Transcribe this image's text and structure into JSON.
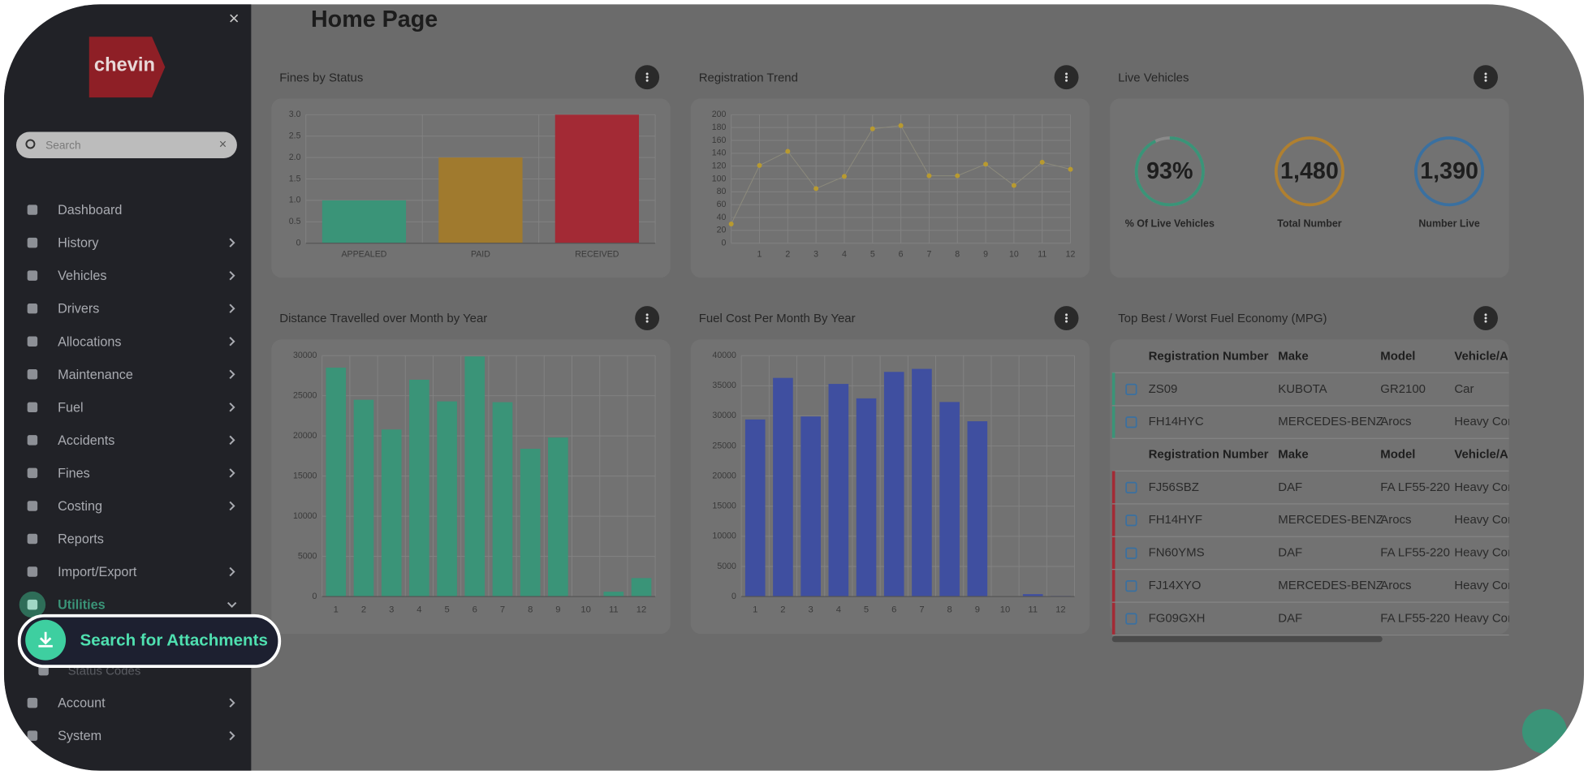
{
  "header": {
    "title": "Home Page"
  },
  "sidebar": {
    "logo": "chevin",
    "search_placeholder": "Search",
    "nav": [
      {
        "label": "Dashboard",
        "expandable": false
      },
      {
        "label": "History",
        "expandable": true
      },
      {
        "label": "Vehicles",
        "expandable": true
      },
      {
        "label": "Drivers",
        "expandable": true
      },
      {
        "label": "Allocations",
        "expandable": true
      },
      {
        "label": "Maintenance",
        "expandable": true
      },
      {
        "label": "Fuel",
        "expandable": true
      },
      {
        "label": "Accidents",
        "expandable": true
      },
      {
        "label": "Fines",
        "expandable": true
      },
      {
        "label": "Costing",
        "expandable": true
      },
      {
        "label": "Reports",
        "expandable": false
      },
      {
        "label": "Import/Export",
        "expandable": true
      },
      {
        "label": "Utilities",
        "expandable": true,
        "active": true
      },
      {
        "label": "Status Codes",
        "expandable": false,
        "sub": true
      },
      {
        "label": "Account",
        "expandable": true
      },
      {
        "label": "System",
        "expandable": true
      }
    ],
    "highlight": "Search for Attachments"
  },
  "chart_data": [
    {
      "type": "bar",
      "title": "Fines by Status",
      "categories": [
        "APPEALED",
        "PAID",
        "RECEIVED"
      ],
      "values": [
        1,
        2,
        3
      ],
      "colors": [
        "#3a9478",
        "#a07a2e",
        "#a32a35"
      ],
      "ylim": [
        0,
        3
      ],
      "yticks": [
        0,
        0.5,
        {
          "value": 1,
          "label": "1.0"
        },
        1.5,
        {
          "value": 2,
          "label": "2.0"
        },
        2.5,
        {
          "value": 3,
          "label": "3.0"
        }
      ],
      "grid": true
    },
    {
      "type": "line",
      "title": "Registration Trend",
      "x": [
        0,
        1,
        2,
        3,
        4,
        5,
        6,
        7,
        8,
        9,
        10,
        11,
        12
      ],
      "values": [
        30,
        121,
        143,
        85,
        104,
        178,
        183,
        105,
        105,
        123,
        90,
        126,
        115
      ],
      "color": "#b89a30",
      "xlim": [
        0,
        12
      ],
      "xticks": [
        1,
        2,
        3,
        4,
        5,
        6,
        7,
        8,
        9,
        10,
        11,
        12
      ],
      "ylim": [
        0,
        200
      ],
      "yticks": [
        0,
        20,
        40,
        60,
        80,
        100,
        120,
        140,
        160,
        180,
        200
      ],
      "grid": true
    },
    {
      "type": "gauge",
      "title": "Live Vehicles",
      "values": [
        93,
        1480,
        1390
      ],
      "value_labels": [
        "93%",
        "1,480",
        "1,390"
      ],
      "labels": [
        "% Of Live Vehicles",
        "Total Number",
        "Number Live"
      ],
      "colors": [
        "#3a9478",
        "#b08030",
        "#3a70a0"
      ],
      "arc": [
        true,
        false,
        false
      ]
    },
    {
      "type": "bar",
      "title": "Distance Travelled over Month by Year",
      "categories": [
        "1",
        "2",
        "3",
        "4",
        "5",
        "6",
        "7",
        "8",
        "9",
        "10",
        "11",
        "12"
      ],
      "values": [
        28500,
        24500,
        20800,
        27000,
        24300,
        29900,
        24200,
        18400,
        19800,
        0,
        600,
        2300
      ],
      "color": "#3a9478",
      "ylim": [
        0,
        30000
      ],
      "yticks": [
        0,
        5000,
        10000,
        15000,
        20000,
        25000,
        30000
      ],
      "grid": true
    },
    {
      "type": "bar",
      "title": "Fuel Cost Per Month By Year",
      "categories": [
        "1",
        "2",
        "3",
        "4",
        "5",
        "6",
        "7",
        "8",
        "9",
        "10",
        "11",
        "12"
      ],
      "values": [
        29400,
        36300,
        29900,
        35300,
        32900,
        37300,
        37800,
        32300,
        29100,
        0,
        400,
        100
      ],
      "color": "#3f4fa0",
      "ylim": [
        0,
        40000
      ],
      "yticks": [
        0,
        5000,
        10000,
        15000,
        20000,
        25000,
        30000,
        35000,
        40000
      ],
      "grid": true
    }
  ],
  "table": {
    "title": "Top Best / Worst Fuel Economy (MPG)",
    "best": {
      "header": [
        "Registration Number",
        "Make",
        "Model",
        "Vehicle/A"
      ],
      "rows": [
        [
          "ZS09",
          "KUBOTA",
          "GR2100",
          "Car"
        ],
        [
          "FH14HYC",
          "MERCEDES-BENZ",
          "Arocs",
          "Heavy Cor"
        ]
      ]
    },
    "worst": {
      "header": [
        "Registration Number",
        "Make",
        "Model",
        "Vehicle/A"
      ],
      "rows": [
        [
          "FJ56SBZ",
          "DAF",
          "FA LF55-220",
          "Heavy Cor"
        ],
        [
          "FH14HYF",
          "MERCEDES-BENZ",
          "Arocs",
          "Heavy Cor"
        ],
        [
          "FN60YMS",
          "DAF",
          "FA LF55-220",
          "Heavy Cor"
        ],
        [
          "FJ14XYO",
          "MERCEDES-BENZ",
          "Arocs",
          "Heavy Cor"
        ],
        [
          "FG09GXH",
          "DAF",
          "FA LF55-220",
          "Heavy Cor"
        ]
      ]
    }
  }
}
